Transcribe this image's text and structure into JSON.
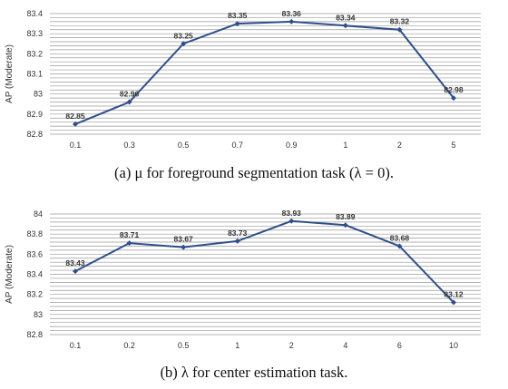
{
  "chart_data": [
    {
      "type": "line",
      "ylabel": "AP (Moderate)",
      "caption": "(a) μ for foreground segmentation task (λ = 0).",
      "categories": [
        "0.1",
        "0.3",
        "0.5",
        "0.7",
        "0.9",
        "1",
        "2",
        "5"
      ],
      "values": [
        82.85,
        82.96,
        83.25,
        83.35,
        83.36,
        83.34,
        83.32,
        82.98
      ],
      "value_labels": [
        "82.85",
        "82.96",
        "83.25",
        "83.35",
        "83.36",
        "83.34",
        "83.32",
        "82.98"
      ],
      "ylim": [
        82.8,
        83.4
      ],
      "yticks": [
        82.8,
        82.9,
        83,
        83.1,
        83.2,
        83.3,
        83.4
      ],
      "ytick_labels": [
        "82.8",
        "82.9",
        "83",
        "83.1",
        "83.2",
        "83.3",
        "83.4"
      ],
      "minor_step": 0.02,
      "line_color": "#2f4f8a",
      "grid_color": "#9a9a9a",
      "grid": true
    },
    {
      "type": "line",
      "ylabel": "AP (Moderate)",
      "caption": "(b) λ for center estimation task.",
      "categories": [
        "0.1",
        "0.2",
        "0.5",
        "1",
        "2",
        "4",
        "6",
        "10"
      ],
      "values": [
        83.43,
        83.71,
        83.67,
        83.73,
        83.93,
        83.89,
        83.68,
        83.12
      ],
      "value_labels": [
        "83.43",
        "83.71",
        "83.67",
        "83.73",
        "83.93",
        "83.89",
        "83.68",
        "83.12"
      ],
      "ylim": [
        82.8,
        84.0
      ],
      "yticks": [
        82.8,
        83.0,
        83.2,
        83.4,
        83.6,
        83.8,
        84.0
      ],
      "ytick_labels": [
        "82.8",
        "83",
        "83.2",
        "83.4",
        "83.6",
        "83.8",
        "84"
      ],
      "minor_step": 0.04,
      "line_color": "#2f4f8a",
      "grid_color": "#9a9a9a",
      "grid": true
    }
  ]
}
